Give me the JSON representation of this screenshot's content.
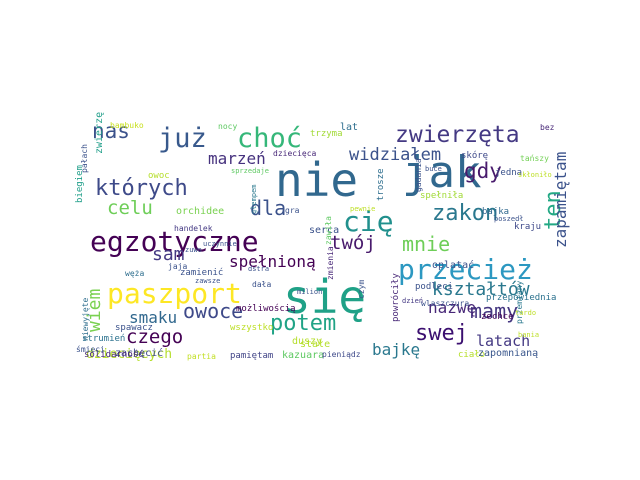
{
  "words": [
    {
      "text": "nie",
      "color": "#31688e"
    },
    {
      "text": "się",
      "color": "#1fa187"
    },
    {
      "text": "jak",
      "color": "#31688e"
    },
    {
      "text": "egzotyczne",
      "color": "#440154"
    },
    {
      "text": "paszport",
      "color": "#fde725"
    },
    {
      "text": "przecież",
      "color": "#2c98c1"
    },
    {
      "text": "cię",
      "color": "#21908d"
    },
    {
      "text": "już",
      "color": "#38598c"
    },
    {
      "text": "choć",
      "color": "#35b779"
    },
    {
      "text": "zwierzęta",
      "color": "#443983"
    },
    {
      "text": "których",
      "color": "#3e4a89"
    },
    {
      "text": "swej",
      "color": "#3b0f70"
    },
    {
      "text": "potem",
      "color": "#20a386"
    },
    {
      "text": "ten",
      "color": "#22a884"
    },
    {
      "text": "zakon",
      "color": "#2a788e"
    },
    {
      "text": "nas",
      "color": "#3b528b"
    },
    {
      "text": "gdy",
      "color": "#481a6c"
    },
    {
      "text": "dla",
      "color": "#3b528b"
    },
    {
      "text": "owoce",
      "color": "#3e4989"
    },
    {
      "text": "mamy",
      "color": "#453781"
    },
    {
      "text": "mnie",
      "color": "#6ece58"
    },
    {
      "text": "celu",
      "color": "#6ece58"
    },
    {
      "text": "twój",
      "color": "#481a6c"
    },
    {
      "text": "czego",
      "color": "#440154"
    },
    {
      "text": "sam",
      "color": "#443983"
    },
    {
      "text": "wiem",
      "color": "#7ad151"
    },
    {
      "text": "kształtów",
      "color": "#2a788e"
    },
    {
      "text": "widziałem",
      "color": "#3b528b"
    },
    {
      "text": "zapamiętam",
      "color": "#3b528b"
    },
    {
      "text": "marzeń",
      "color": "#46327e"
    },
    {
      "text": "spełnioną",
      "color": "#440154"
    },
    {
      "text": "smaku",
      "color": "#31688e"
    },
    {
      "text": "nazwę",
      "color": "#482878"
    },
    {
      "text": "bajkę",
      "color": "#2a788e"
    },
    {
      "text": "latach",
      "color": "#443983"
    },
    {
      "text": "dziecięcych",
      "color": "#b5de2b"
    },
    {
      "text": "zachęcić",
      "color": "#3e4989"
    },
    {
      "text": "ciało",
      "color": "#b5de2b"
    },
    {
      "text": "wszystko",
      "color": "#bddf26"
    },
    {
      "text": "duszy",
      "color": "#b5de2b"
    },
    {
      "text": "pamiętam",
      "color": "#414487"
    },
    {
      "text": "kazuara",
      "color": "#5ec962"
    },
    {
      "text": "stałe",
      "color": "#b5de2b"
    },
    {
      "text": "zapomnianą",
      "color": "#39568c"
    },
    {
      "text": "lat",
      "color": "#2e6e8e"
    },
    {
      "text": "trzyma",
      "color": "#a2da37"
    },
    {
      "text": "orchidee",
      "color": "#7ad151"
    },
    {
      "text": "możliwością",
      "color": "#440154"
    },
    {
      "text": "zamienić",
      "color": "#3b528b"
    },
    {
      "text": "spawacz",
      "color": "#3b528b"
    },
    {
      "text": "solidarność",
      "color": "#482878"
    },
    {
      "text": "strumień",
      "color": "#2c728e"
    },
    {
      "text": "partia",
      "color": "#c2df23"
    },
    {
      "text": "pieniądz",
      "color": "#3e4989"
    },
    {
      "text": "oplatać",
      "color": "#3b528b"
    },
    {
      "text": "przepowiednia",
      "color": "#2c728e"
    },
    {
      "text": "zechce",
      "color": "#440154"
    },
    {
      "text": "podleci",
      "color": "#3b528b"
    },
    {
      "text": "skórę",
      "color": "#3e4989"
    },
    {
      "text": "bajka",
      "color": "#31688e"
    },
    {
      "text": "jedna",
      "color": "#3b528b"
    },
    {
      "text": "kraju",
      "color": "#3e4989"
    },
    {
      "text": "tańszy",
      "color": "#73d056"
    },
    {
      "text": "bez",
      "color": "#482878"
    },
    {
      "text": "serca",
      "color": "#3b528b"
    },
    {
      "text": "gra",
      "color": "#3b528b"
    },
    {
      "text": "dziecięca",
      "color": "#482878"
    },
    {
      "text": "nocy",
      "color": "#5ec962"
    },
    {
      "text": "jaja",
      "color": "#3b528b"
    },
    {
      "text": "węża",
      "color": "#2e6e8e"
    },
    {
      "text": "owoc",
      "color": "#b5de2b"
    },
    {
      "text": "bambuko",
      "color": "#c8e020"
    },
    {
      "text": "pałach",
      "color": "#3b528b"
    },
    {
      "text": "zwierzę",
      "color": "#1f9e89"
    },
    {
      "text": "biegiem",
      "color": "#1f9e89"
    },
    {
      "text": "handelek",
      "color": "#443983"
    },
    {
      "text": "sprzedaje",
      "color": "#5ec962"
    },
    {
      "text": "głempem",
      "color": "#2a788e"
    },
    {
      "text": "uczynnie",
      "color": "#3b528b"
    },
    {
      "text": "dstra",
      "color": "#3b528b"
    },
    {
      "text": "zmienia",
      "color": "#482878"
    },
    {
      "text": "dała",
      "color": "#3b528b"
    },
    {
      "text": "milion",
      "color": "#3b528b"
    },
    {
      "text": "niewyjęte",
      "color": "#2e6e8e"
    },
    {
      "text": "śmieci",
      "color": "#3b528b"
    },
    {
      "text": "zawiła",
      "color": "#5ec962"
    },
    {
      "text": "trosze",
      "color": "#2e6e8e"
    },
    {
      "text": "dzień",
      "color": "#443983"
    },
    {
      "text": "spełniła",
      "color": "#a2da37"
    },
    {
      "text": "poszedł",
      "color": "#3b528b"
    },
    {
      "text": "buce",
      "color": "#3b528b"
    },
    {
      "text": "gadania",
      "color": "#3b528b"
    },
    {
      "text": "skłoniło",
      "color": "#bddf26"
    },
    {
      "text": "przemiany",
      "color": "#2a788e"
    },
    {
      "text": "tardo",
      "color": "#bddf26"
    },
    {
      "text": "bania",
      "color": "#bddf26"
    },
    {
      "text": "pewnie",
      "color": "#bddf26"
    },
    {
      "text": "zawsze",
      "color": "#3b528b"
    },
    {
      "text": "powróciły",
      "color": "#482878"
    },
    {
      "text": "czym",
      "color": "#3b528b"
    },
    {
      "text": "zuwo",
      "color": "#3b528b"
    },
    {
      "text": "wlaszczura",
      "color": "#3b528b"
    }
  ]
}
